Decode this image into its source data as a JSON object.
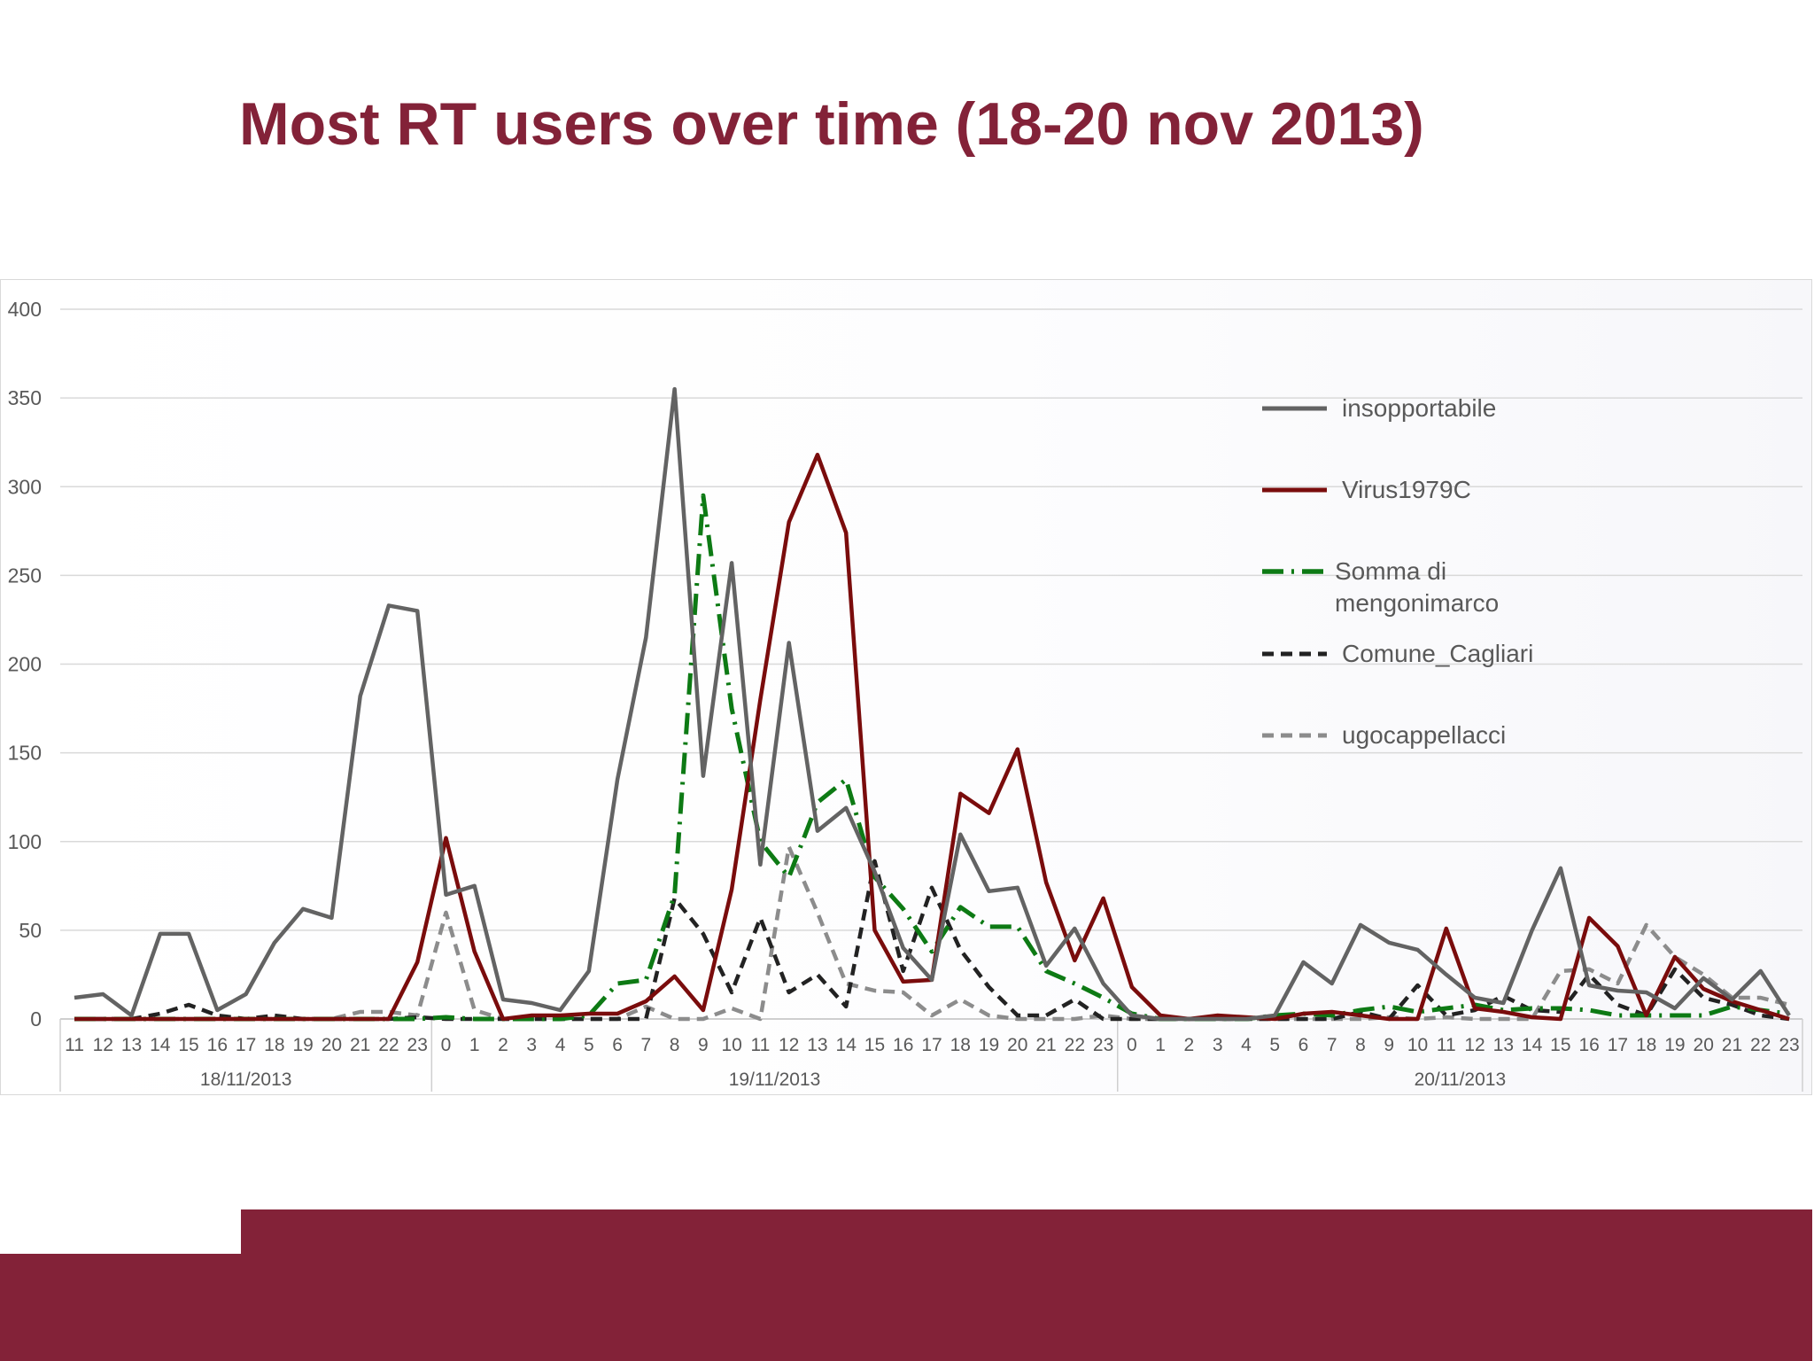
{
  "slide": {
    "title": "Most RT users over time (18-20 nov 2013)",
    "accent_color": "#832238"
  },
  "chart_data": {
    "type": "line",
    "title": "",
    "xlabel": "",
    "ylabel": "",
    "ylim": [
      0,
      400
    ],
    "y_ticks": [
      0,
      50,
      100,
      150,
      200,
      250,
      300,
      350,
      400
    ],
    "grid": true,
    "legend_position": "right",
    "x": [
      "11",
      "12",
      "13",
      "14",
      "15",
      "16",
      "17",
      "18",
      "19",
      "20",
      "21",
      "22",
      "23",
      "0",
      "1",
      "2",
      "3",
      "4",
      "5",
      "6",
      "7",
      "8",
      "9",
      "10",
      "11",
      "12",
      "13",
      "14",
      "15",
      "16",
      "17",
      "18",
      "19",
      "20",
      "21",
      "22",
      "23",
      "0",
      "1",
      "2",
      "3",
      "4",
      "5",
      "6",
      "7",
      "8",
      "9",
      "10",
      "11",
      "12",
      "13",
      "14",
      "15",
      "16",
      "17",
      "18",
      "19",
      "20",
      "21",
      "22",
      "23"
    ],
    "x_groups": [
      {
        "label": "18/11/2013",
        "from": 0,
        "to": 12
      },
      {
        "label": "19/11/2013",
        "from": 13,
        "to": 36
      },
      {
        "label": "20/11/2013",
        "from": 37,
        "to": 60
      }
    ],
    "series": [
      {
        "name": "insopportabile",
        "color": "#636363",
        "dash": "solid",
        "values": [
          12,
          14,
          2,
          48,
          48,
          5,
          14,
          43,
          62,
          57,
          182,
          233,
          230,
          70,
          75,
          11,
          9,
          5,
          27,
          135,
          215,
          355,
          137,
          257,
          87,
          212,
          106,
          119,
          83,
          40,
          22,
          104,
          72,
          74,
          30,
          51,
          20,
          2,
          0,
          0,
          0,
          0,
          2,
          32,
          20,
          53,
          43,
          39,
          25,
          12,
          9,
          50,
          85,
          19,
          16,
          15,
          6,
          23,
          11,
          27,
          2
        ]
      },
      {
        "name": "Virus1979C",
        "color": "#7a0c0c",
        "dash": "solid",
        "values": [
          0,
          0,
          0,
          0,
          0,
          0,
          0,
          0,
          0,
          0,
          0,
          0,
          32,
          102,
          38,
          0,
          2,
          2,
          3,
          3,
          10,
          24,
          5,
          73,
          180,
          280,
          318,
          274,
          50,
          21,
          22,
          127,
          116,
          152,
          77,
          33,
          68,
          18,
          2,
          0,
          2,
          1,
          0,
          3,
          4,
          2,
          0,
          0,
          51,
          6,
          4,
          1,
          0,
          57,
          41,
          2,
          35,
          17,
          10,
          5,
          0
        ]
      },
      {
        "name": "Somma di mengonimarco",
        "color": "#0d7a14",
        "dash": "dashdot",
        "values": [
          0,
          0,
          0,
          0,
          0,
          0,
          0,
          0,
          0,
          0,
          0,
          0,
          0,
          1,
          0,
          0,
          0,
          0,
          2,
          20,
          22,
          70,
          295,
          175,
          100,
          80,
          122,
          135,
          80,
          62,
          38,
          63,
          52,
          52,
          27,
          20,
          12,
          3,
          0,
          0,
          0,
          0,
          2,
          3,
          2,
          5,
          7,
          4,
          6,
          8,
          5,
          6,
          6,
          5,
          2,
          2,
          2,
          2,
          7,
          5,
          3
        ]
      },
      {
        "name": "Comune_Cagliari",
        "color": "#222222",
        "dash": "dashed",
        "values": [
          0,
          0,
          0,
          3,
          8,
          2,
          0,
          2,
          0,
          0,
          0,
          0,
          1,
          0,
          0,
          0,
          0,
          0,
          0,
          0,
          0,
          68,
          48,
          15,
          57,
          15,
          25,
          7,
          89,
          27,
          74,
          39,
          18,
          2,
          2,
          11,
          0,
          0,
          0,
          0,
          0,
          0,
          0,
          0,
          0,
          4,
          0,
          19,
          2,
          5,
          13,
          5,
          4,
          25,
          8,
          2,
          28,
          12,
          8,
          2,
          0
        ]
      },
      {
        "name": "ugocappellacci",
        "color": "#8c8c8c",
        "dash": "dashed",
        "values": [
          0,
          0,
          0,
          0,
          0,
          0,
          0,
          0,
          0,
          0,
          4,
          4,
          2,
          60,
          5,
          0,
          0,
          0,
          0,
          0,
          7,
          0,
          0,
          6,
          0,
          97,
          60,
          20,
          16,
          15,
          2,
          11,
          2,
          0,
          0,
          0,
          2,
          0,
          0,
          0,
          0,
          0,
          0,
          0,
          0,
          0,
          1,
          0,
          1,
          0,
          0,
          0,
          27,
          28,
          20,
          53,
          35,
          25,
          12,
          12,
          8
        ]
      }
    ]
  }
}
